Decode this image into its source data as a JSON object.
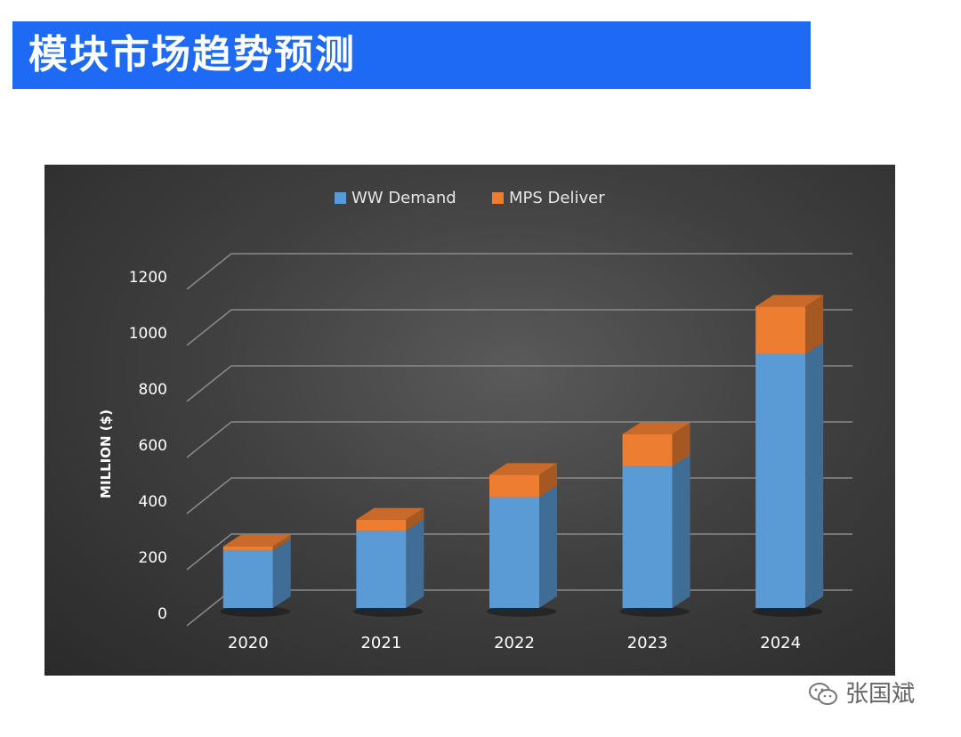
{
  "header": {
    "title": "模块市场趋势预测"
  },
  "watermark": {
    "author": "张国斌",
    "icon": "wechat-icon"
  },
  "chart_data": {
    "type": "bar",
    "stacked": true,
    "style": "3d",
    "categories": [
      "2020",
      "2021",
      "2022",
      "2023",
      "2024"
    ],
    "series": [
      {
        "name": "WW Demand",
        "color": "#5b9bd5",
        "values": [
          205,
          275,
          395,
          505,
          905
        ]
      },
      {
        "name": "MPS Deliver",
        "color": "#ed7d31",
        "values": [
          15,
          40,
          80,
          115,
          170
        ]
      }
    ],
    "ylabel": "MILLION ($)",
    "xlabel": "",
    "ylim": [
      0,
      1200
    ],
    "yticks": [
      "0",
      "200",
      "400",
      "600",
      "800",
      "1000",
      "1200"
    ],
    "grid": true,
    "legend": "top-center",
    "background": "#3a3a3a"
  }
}
